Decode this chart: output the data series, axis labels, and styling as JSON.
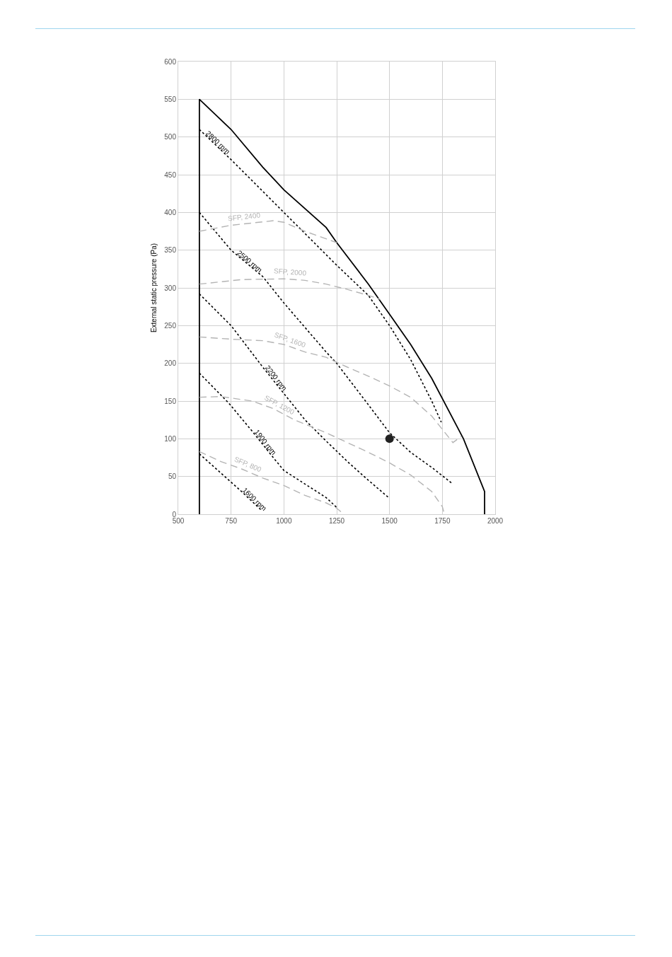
{
  "chart_data": {
    "type": "line",
    "ylabel": "External static pressure (Pa)",
    "xlim": [
      500,
      2000
    ],
    "xticks": [
      500,
      750,
      1000,
      1250,
      1500,
      1750,
      2000
    ],
    "ylim": [
      0,
      600
    ],
    "yticks": [
      0,
      50,
      100,
      150,
      200,
      250,
      300,
      350,
      400,
      450,
      500,
      550,
      600
    ],
    "grid": true,
    "legend": false,
    "marker": "none",
    "series": [
      {
        "color": "#000000",
        "line_style": "solid",
        "x": [
          600,
          600,
          750,
          900,
          1000,
          1200,
          1250,
          1400,
          1500,
          1600,
          1700,
          1850,
          1950,
          1950
        ],
        "values": [
          0,
          550,
          510,
          460,
          430,
          380,
          360,
          305,
          265,
          225,
          180,
          100,
          30,
          0
        ]
      },
      {
        "name": "2800 rpm",
        "color": "#000000",
        "line_style": "dotted",
        "x": [
          600,
          750,
          1000,
          1250,
          1400,
          1500,
          1600,
          1700,
          1745
        ],
        "values": [
          510,
          470,
          400,
          330,
          290,
          250,
          205,
          150,
          122
        ]
      },
      {
        "name": "2500 rpm",
        "color": "#000000",
        "line_style": "dotted",
        "x": [
          600,
          750,
          900,
          1000,
          1200,
          1250,
          1400,
          1500,
          1600,
          1700,
          1800
        ],
        "values": [
          400,
          350,
          315,
          280,
          215,
          200,
          145,
          108,
          82,
          62,
          40
        ]
      },
      {
        "name": "2200 rpm",
        "color": "#000000",
        "line_style": "dotted",
        "x": [
          600,
          750,
          900,
          1000,
          1100,
          1200,
          1300,
          1400,
          1500
        ],
        "values": [
          292,
          250,
          195,
          160,
          125,
          97,
          70,
          45,
          21
        ]
      },
      {
        "name": "1900 rpm",
        "color": "#000000",
        "line_style": "dotted",
        "x": [
          600,
          740,
          850,
          950,
          1000,
          1100,
          1200,
          1250
        ],
        "values": [
          187,
          147,
          110,
          75,
          58,
          40,
          22,
          9
        ]
      },
      {
        "name": "1600 rpm",
        "color": "#000000",
        "line_style": "dotted",
        "x": [
          600,
          700,
          800,
          895
        ],
        "values": [
          80,
          55,
          30,
          5
        ]
      },
      {
        "name": "SFP, 2400",
        "color": "#b4b4b4",
        "line_style": "dashed",
        "x": [
          600,
          750,
          950,
          1000,
          1100,
          1200,
          1250
        ],
        "values": [
          375,
          383,
          389,
          387,
          375,
          365,
          360
        ]
      },
      {
        "name": "SFP, 2000",
        "color": "#b4b4b4",
        "line_style": "dashed",
        "x": [
          600,
          800,
          1000,
          1100,
          1200,
          1300,
          1400,
          1455
        ],
        "values": [
          305,
          311,
          312,
          310,
          305,
          298,
          290,
          285
        ]
      },
      {
        "name": "SFP, 1600",
        "color": "#b4b4b4",
        "line_style": "dashed",
        "x": [
          600,
          750,
          900,
          1000,
          1100,
          1200,
          1300,
          1400,
          1500,
          1600,
          1700,
          1800,
          1840
        ],
        "values": [
          235,
          232,
          230,
          225,
          215,
          208,
          195,
          183,
          170,
          155,
          130,
          95,
          103
        ]
      },
      {
        "name": "SFP, 1200",
        "color": "#b4b4b4",
        "line_style": "dashed",
        "x": [
          600,
          700,
          850,
          950,
          1050,
          1200,
          1300,
          1400,
          1500,
          1600,
          1700,
          1750,
          1760
        ],
        "values": [
          155,
          156,
          150,
          140,
          125,
          108,
          95,
          82,
          68,
          52,
          30,
          10,
          0
        ]
      },
      {
        "name": "SFP, 800",
        "color": "#b4b4b4",
        "line_style": "dashed",
        "x": [
          600,
          700,
          800,
          900,
          1000,
          1100,
          1200,
          1250,
          1275
        ],
        "values": [
          83,
          70,
          60,
          48,
          38,
          25,
          15,
          8,
          2
        ]
      },
      {
        "type": "scatter",
        "marker": "circle",
        "color": "#222222",
        "x": [
          1500
        ],
        "values": [
          100
        ]
      }
    ]
  }
}
